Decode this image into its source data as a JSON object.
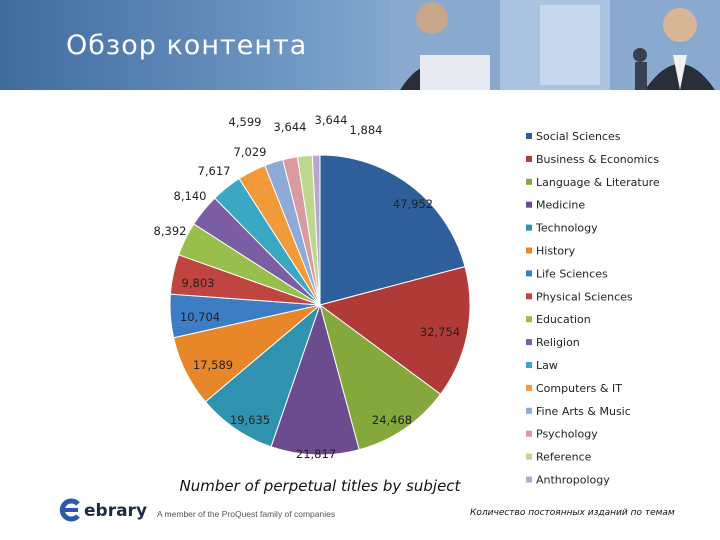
{
  "header": {
    "title": "Обзор контента"
  },
  "footer": {
    "brand": "ebrary",
    "tagline": "A member of the ProQuest family of companies",
    "caption": "Количество постоянных изданий по темам"
  },
  "chart_data": {
    "type": "pie",
    "title": "Number of perpetual titles by subject",
    "legend_position": "right",
    "categories": [
      "Social Sciences",
      "Business & Economics",
      "Language & Literature",
      "Medicine",
      "Technology",
      "History",
      "Life Sciences",
      "Physical Sciences",
      "Education",
      "Religion",
      "Law",
      "Computers & IT",
      "Fine Arts & Music",
      "Psychology",
      "Reference",
      "Anthropology"
    ],
    "values": [
      47952,
      32754,
      24468,
      21817,
      19635,
      17589,
      10704,
      9803,
      8392,
      8140,
      7617,
      7029,
      4599,
      3644,
      3644,
      1884
    ],
    "value_labels": [
      "47,952",
      "32,754",
      "24,468",
      "21,817",
      "19,635",
      "17,589",
      "10,704",
      "9,803",
      "8,392",
      "8,140",
      "7,617",
      "7,029",
      "4,599",
      "3,644",
      "3,644",
      "1,884"
    ],
    "colors": [
      "#2e5f9a",
      "#b03a37",
      "#84a83b",
      "#6b4c8f",
      "#2f93b0",
      "#e8862a",
      "#3d7dc4",
      "#c0443f",
      "#98bf4c",
      "#7a5da3",
      "#3aa7c4",
      "#f19a3a",
      "#8faad6",
      "#d99aa0",
      "#bcd88f",
      "#b8a6cf"
    ]
  }
}
